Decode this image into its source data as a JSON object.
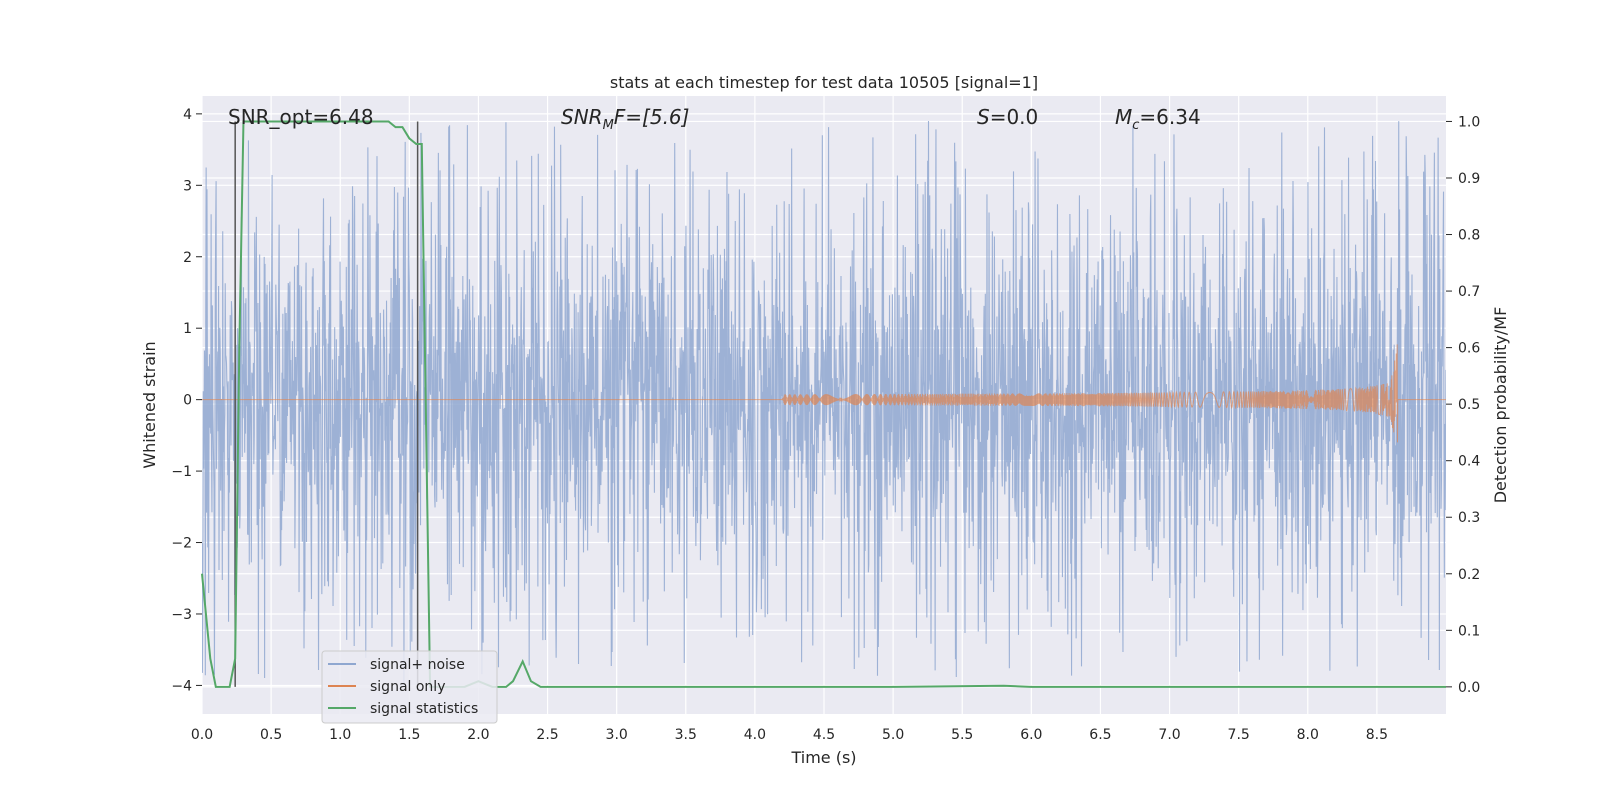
{
  "chart_data": {
    "type": "line",
    "title": "stats at each timestep for test data 10505 [signal=1]",
    "xlabel": "Time (s)",
    "ylabel": "Whitened strain",
    "y2label": "Detection probability/MF",
    "xlim": [
      0.0,
      9.0
    ],
    "ylim": [
      -4.4,
      4.25
    ],
    "y2lim": [
      -0.048,
      1.045
    ],
    "x_ticks": [
      0.0,
      0.5,
      1.0,
      1.5,
      2.0,
      2.5,
      3.0,
      3.5,
      4.0,
      4.5,
      5.0,
      5.5,
      6.0,
      6.5,
      7.0,
      7.5,
      8.0,
      8.5
    ],
    "x_tick_labels": [
      "0.0",
      "0.5",
      "1.0",
      "1.5",
      "2.0",
      "2.5",
      "3.0",
      "3.5",
      "4.0",
      "4.5",
      "5.0",
      "5.5",
      "6.0",
      "6.5",
      "7.0",
      "7.5",
      "8.0",
      "8.5"
    ],
    "y_ticks": [
      -4,
      -3,
      -2,
      -1,
      0,
      1,
      2,
      3,
      4
    ],
    "y_tick_labels": [
      "−4",
      "−3",
      "−2",
      "−1",
      "0",
      "1",
      "2",
      "3",
      "4"
    ],
    "y2_ticks": [
      0.0,
      0.1,
      0.2,
      0.3,
      0.4,
      0.5,
      0.6,
      0.7,
      0.8,
      0.9,
      1.0
    ],
    "y2_tick_labels": [
      "0.0",
      "0.1",
      "0.2",
      "0.3",
      "0.4",
      "0.5",
      "0.6",
      "0.7",
      "0.8",
      "0.9",
      "1.0"
    ],
    "grid": true,
    "legend_position": "lower-left",
    "annotations": [
      {
        "text": "SNR_opt=6.48",
        "x": 0.2,
        "y": 3.95
      },
      {
        "base": "SNR",
        "sub": "M",
        "suffix": "F=[5.6]",
        "x": 2.6,
        "y": 3.95
      },
      {
        "base": "S",
        "sub": "",
        "suffix": "=0.0",
        "x": 5.6,
        "y": 3.95
      },
      {
        "base": "M",
        "sub": "c",
        "suffix": "=6.34",
        "x": 6.6,
        "y": 3.95
      }
    ],
    "vlines": [
      0.24,
      1.56
    ],
    "series": [
      {
        "name": "signal+ noise",
        "color": "#8fa7d0",
        "kind": "noise",
        "amplitude_envelope": {
          "typical_upper": 2.3,
          "typical_lower": -2.2,
          "max": 3.9,
          "min": -4.0
        }
      },
      {
        "name": "signal only",
        "color": "#dd8452",
        "kind": "chirp",
        "start_time": 4.2,
        "merger_time": 8.65,
        "peak_amplitude": 0.85
      },
      {
        "name": "signal statistics",
        "color": "#55a868",
        "kind": "line",
        "axis": "right",
        "x": [
          0.0,
          0.06,
          0.1,
          0.2,
          0.24,
          0.27,
          0.3,
          0.4,
          1.35,
          1.4,
          1.45,
          1.5,
          1.55,
          1.59,
          1.65,
          1.8,
          1.9,
          2.0,
          2.05,
          2.1,
          2.2,
          2.25,
          2.32,
          2.38,
          2.45,
          3.0,
          5.0,
          5.8,
          6.0,
          8.0,
          9.0
        ],
        "y": [
          0.2,
          0.05,
          0.0,
          0.0,
          0.05,
          0.6,
          1.0,
          1.0,
          1.0,
          0.99,
          0.99,
          0.97,
          0.96,
          0.96,
          0.0,
          0.0,
          0.0,
          0.01,
          0.005,
          0.0,
          0.0,
          0.01,
          0.045,
          0.01,
          0.0,
          0.0,
          0.0,
          0.002,
          0.0,
          0.0,
          0.0
        ]
      }
    ]
  }
}
